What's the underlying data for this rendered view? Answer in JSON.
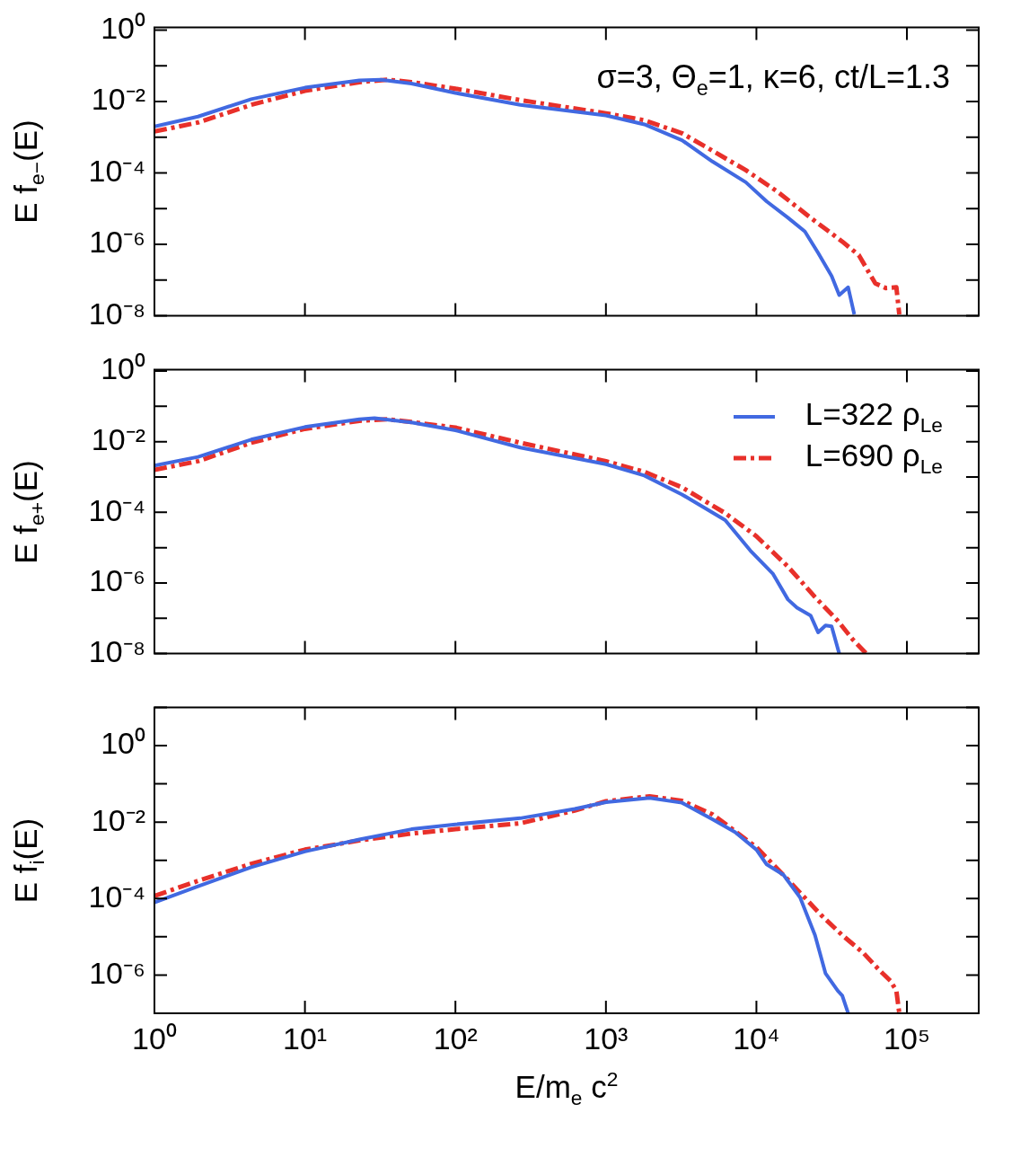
{
  "chart_data": [
    {
      "type": "line",
      "ylabel": "E f$_{e−}$(E)",
      "annotations": [
        "σ=3, Θ$_{e}$=1, κ=6, ct/L=1.3"
      ],
      "log": "xy",
      "tick_labels": "y",
      "xlim": [
        1,
        300000
      ],
      "xticks": [
        1,
        10,
        100,
        1000,
        10000,
        100000
      ],
      "ylim": [
        1e-08,
        1.2
      ],
      "yticks": [
        {
          "value": 1,
          "label": "10⁰"
        },
        {
          "value": 0.1,
          "label": null
        },
        {
          "value": 0.01,
          "label": "10⁻²"
        },
        {
          "value": 0.001,
          "label": null
        },
        {
          "value": 0.0001,
          "label": "10⁻⁴"
        },
        {
          "value": 1e-05,
          "label": null
        },
        {
          "value": 1e-06,
          "label": "10⁻⁶"
        },
        {
          "value": 1e-07,
          "label": null
        },
        {
          "value": 1e-08,
          "label": "10⁻⁸"
        }
      ],
      "series": [
        {
          "color": "#4169e1",
          "line_style": "solid",
          "x": [
            1,
            1.95,
            4.4,
            10,
            23,
            32,
            51,
            100,
            270,
            1000,
            1800,
            3200,
            5100,
            8500,
            11700,
            16200,
            21000,
            25700,
            31600,
            35500,
            40700,
            44700
          ],
          "values": [
            0.002,
            0.0038,
            0.0117,
            0.0245,
            0.039,
            0.041,
            0.032,
            0.0174,
            0.0081,
            0.0041,
            0.0023,
            0.00083,
            0.00021,
            5.5e-05,
            1.6e-05,
            5.6e-06,
            2.3e-06,
            5.8e-07,
            1.3e-07,
            3.8e-08,
            6.3e-08,
            1.1e-08
          ]
        },
        {
          "color": "#e8302a",
          "line_style": "dashed",
          "x": [
            1,
            1.95,
            4.4,
            10,
            23,
            35,
            51,
            100,
            270,
            1000,
            1800,
            3200,
            5100,
            8500,
            13800,
            22900,
            37200,
            47900,
            61700,
            72400,
            85100,
            89000
          ],
          "values": [
            0.00145,
            0.0026,
            0.0081,
            0.02,
            0.035,
            0.041,
            0.035,
            0.023,
            0.011,
            0.0047,
            0.003,
            0.0013,
            0.00042,
            0.00012,
            3e-05,
            5.6e-06,
            1.2e-06,
            5e-07,
            8.1e-08,
            6e-08,
            6.3e-08,
            1.1e-08
          ]
        }
      ]
    },
    {
      "type": "line",
      "ylabel": "E f$_{e+}$(E)",
      "log": "xy",
      "tick_labels": "y",
      "legend": "top right",
      "xlim": [
        1,
        300000
      ],
      "xticks": [
        1,
        10,
        100,
        1000,
        10000,
        100000
      ],
      "ylim": [
        1e-08,
        1.1
      ],
      "yticks": [
        {
          "value": 1,
          "label": "10⁰"
        },
        {
          "value": 0.1,
          "label": null
        },
        {
          "value": 0.01,
          "label": "10⁻²"
        },
        {
          "value": 0.001,
          "label": null
        },
        {
          "value": 0.0001,
          "label": "10⁻⁴"
        },
        {
          "value": 1e-05,
          "label": null
        },
        {
          "value": 1e-06,
          "label": "10⁻⁶"
        },
        {
          "value": 1e-07,
          "label": null
        },
        {
          "value": 1e-08,
          "label": "10⁻⁸"
        }
      ],
      "series": [
        {
          "name": "L=322 ρ$_{Le}$",
          "color": "#4169e1",
          "line_style": "solid",
          "x": [
            1,
            1.95,
            4.4,
            10,
            23,
            29,
            51,
            100,
            270,
            1000,
            1800,
            3200,
            6200,
            9100,
            12900,
            16200,
            18600,
            22900,
            25700,
            28800,
            31600,
            35500
          ],
          "values": [
            0.0021,
            0.0037,
            0.0115,
            0.026,
            0.043,
            0.046,
            0.035,
            0.021,
            0.0068,
            0.0023,
            0.0011,
            0.00032,
            6e-05,
            8.3e-06,
            1.8e-06,
            3.4e-07,
            2e-07,
            1.2e-07,
            4e-08,
            6.3e-08,
            5.9e-08,
            1e-08
          ]
        },
        {
          "name": "L=690 ρ$_{Le}$",
          "color": "#e8302a",
          "line_style": "dashed",
          "x": [
            1,
            1.95,
            4.4,
            10,
            23,
            35,
            51,
            100,
            270,
            1000,
            1800,
            3200,
            6200,
            10000,
            16200,
            24500,
            34700,
            43700,
            53700
          ],
          "values": [
            0.0016,
            0.0028,
            0.0093,
            0.023,
            0.039,
            0.043,
            0.036,
            0.025,
            0.0093,
            0.0028,
            0.0014,
            0.00051,
            9.5e-05,
            2.1e-05,
            2.9e-06,
            4e-07,
            8.5e-08,
            2.5e-08,
            1e-08
          ]
        }
      ]
    },
    {
      "type": "line",
      "xlabel": "E/m$_{e}$ c$^{2}$",
      "ylabel": "E f$_{i}$(E)",
      "log": "xy",
      "xlim": [
        1,
        300000
      ],
      "xticks": [
        {
          "value": 1,
          "label": "10⁰"
        },
        {
          "value": 10,
          "label": "10¹"
        },
        {
          "value": 100,
          "label": "10²"
        },
        {
          "value": 1000,
          "label": "10³"
        },
        {
          "value": 10000,
          "label": "10⁴"
        },
        {
          "value": 100000,
          "label": "10⁵"
        }
      ],
      "ylim": [
        1e-07,
        10
      ],
      "yticks": [
        {
          "value": 10,
          "label": null
        },
        {
          "value": 1,
          "label": "10⁰"
        },
        {
          "value": 0.1,
          "label": null
        },
        {
          "value": 0.01,
          "label": "10⁻²"
        },
        {
          "value": 0.001,
          "label": null
        },
        {
          "value": 0.0001,
          "label": "10⁻⁴"
        },
        {
          "value": 1e-05,
          "label": null
        },
        {
          "value": 1e-06,
          "label": "10⁻⁶"
        },
        {
          "value": 1e-07,
          "label": null
        }
      ],
      "series": [
        {
          "color": "#4169e1",
          "line_style": "solid",
          "x": [
            1,
            1.95,
            4.4,
            10,
            23,
            51,
            100,
            270,
            620,
            1000,
            1950,
            3200,
            5100,
            7200,
            10000,
            11700,
            15100,
            19500,
            24500,
            28800,
            34700,
            37200,
            40700
          ],
          "values": [
            7.9e-05,
            0.00021,
            0.00066,
            0.0017,
            0.0035,
            0.0065,
            0.0087,
            0.0126,
            0.022,
            0.033,
            0.043,
            0.032,
            0.0118,
            0.0055,
            0.0019,
            0.00078,
            0.00042,
            0.000107,
            1.1e-05,
            1.1e-06,
            3.9e-07,
            2.9e-07,
            1e-07
          ]
        },
        {
          "color": "#e8302a",
          "line_style": "dashed",
          "x": [
            1,
            1.95,
            4.4,
            10,
            23,
            51,
            100,
            270,
            620,
            1000,
            1950,
            3200,
            5100,
            10000,
            16200,
            26900,
            37200,
            51300,
            66100,
            77600,
            85100,
            89000
          ],
          "values": [
            0.000117,
            0.00029,
            0.00081,
            0.0019,
            0.0033,
            0.005,
            0.0065,
            0.0093,
            0.02,
            0.035,
            0.047,
            0.036,
            0.016,
            0.0022,
            0.00031,
            3.7e-05,
            1.1e-05,
            3.8e-06,
            1.3e-06,
            7.1e-07,
            3.9e-07,
            1e-07
          ]
        }
      ]
    }
  ]
}
